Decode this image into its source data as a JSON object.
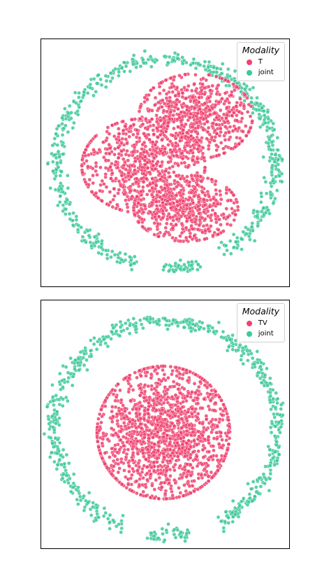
{
  "chart_data": [
    {
      "type": "scatter",
      "title": "",
      "xlabel": "",
      "ylabel": "",
      "grid": false,
      "legend": {
        "title": "Modality",
        "placement": "top-right",
        "entries": [
          {
            "label": "T",
            "color": "#f0426e"
          },
          {
            "label": "joint",
            "color": "#3ec99a"
          }
        ]
      },
      "series": [
        {
          "name": "T",
          "color": "#f0426e",
          "shape": "heart-shaped dense cluster in the center",
          "clusters": [
            {
              "center": [
                0.62,
                0.69
              ],
              "spread": [
                0.12,
                0.09
              ],
              "count": 700
            },
            {
              "center": [
                0.41,
                0.49
              ],
              "spread": [
                0.13,
                0.1
              ],
              "count": 700
            },
            {
              "center": [
                0.58,
                0.32
              ],
              "spread": [
                0.11,
                0.07
              ],
              "count": 500
            }
          ]
        },
        {
          "name": "joint",
          "color": "#3ec99a",
          "shape": "broken ring around the center",
          "ring": {
            "center": [
              0.5,
              0.5
            ],
            "radius": [
              0.44,
              0.42
            ],
            "gaps_deg": [
              [
                -72,
                -60
              ],
              [
                -105,
                -92
              ]
            ],
            "count": 650
          }
        }
      ]
    },
    {
      "type": "scatter",
      "title": "",
      "xlabel": "",
      "ylabel": "",
      "grid": false,
      "legend": {
        "title": "Modality",
        "placement": "top-right",
        "entries": [
          {
            "label": "TV",
            "color": "#f0426e"
          },
          {
            "label": "joint",
            "color": "#3ec99a"
          }
        ]
      },
      "series": [
        {
          "name": "TV",
          "color": "#f0426e",
          "shape": "round dense cluster in the center",
          "clusters": [
            {
              "center": [
                0.49,
                0.47
              ],
              "spread": [
                0.14,
                0.14
              ],
              "count": 1500
            }
          ]
        },
        {
          "name": "joint",
          "color": "#3ec99a",
          "shape": "broken ring around the center",
          "ring": {
            "center": [
              0.5,
              0.49
            ],
            "radius": [
              0.45,
              0.43
            ],
            "gaps_deg": [
              [
                -78,
                -62
              ],
              [
                -112,
                -100
              ]
            ],
            "count": 700
          }
        }
      ]
    }
  ]
}
